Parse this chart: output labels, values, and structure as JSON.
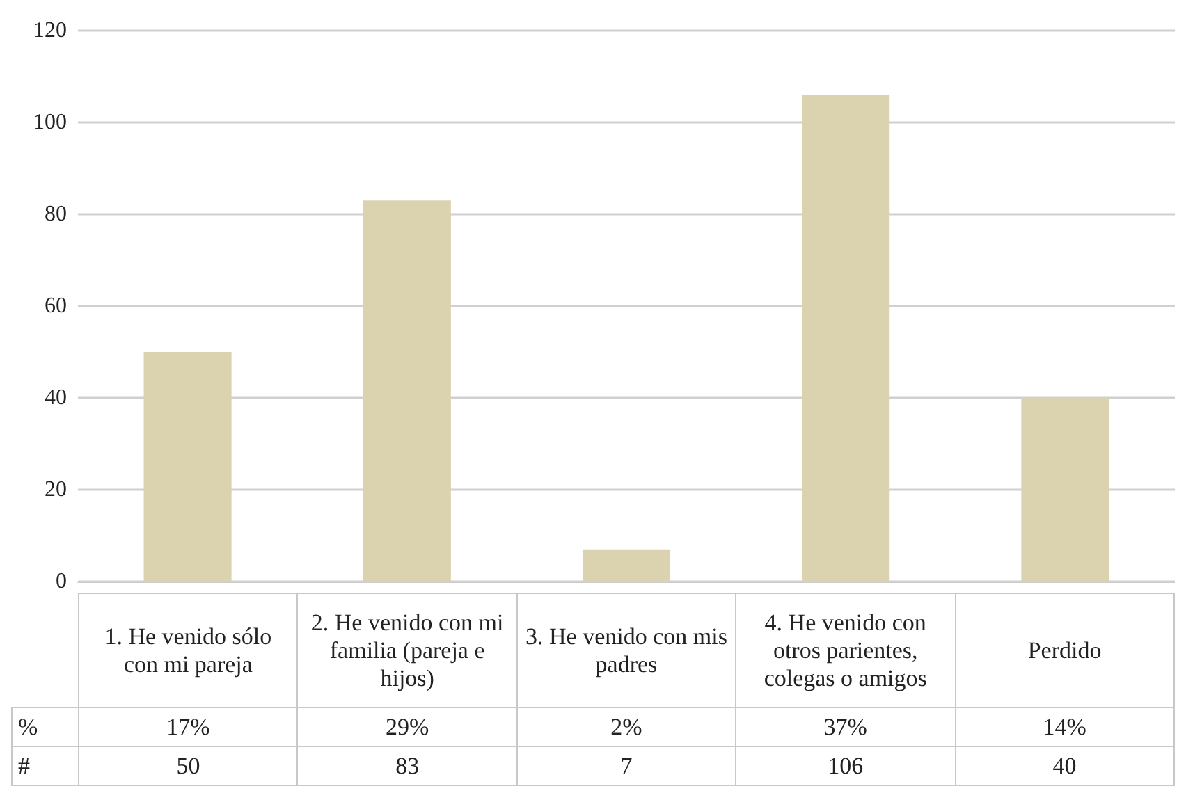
{
  "chart_data": {
    "type": "bar",
    "categories": [
      "1. He venido sólo con mi pareja",
      "2. He venido con mi familia (pareja e hijos)",
      "3. He venido con mis padres",
      "4. He venido con otros parientes, colegas o amigos",
      "Perdido"
    ],
    "values": [
      50,
      83,
      7,
      106,
      40
    ],
    "color": "#dbd3b0",
    "ylim": [
      0,
      120
    ],
    "yticks": [
      0,
      20,
      40,
      60,
      80,
      100,
      120
    ],
    "grid": true,
    "value_labels": [
      "50",
      "83",
      "7",
      "106",
      "40"
    ],
    "annotations": [
      "%",
      "#",
      "17%",
      "29%",
      "2%",
      "37%",
      "14%"
    ]
  }
}
